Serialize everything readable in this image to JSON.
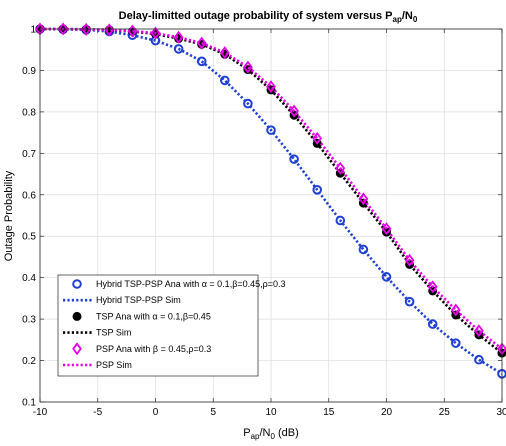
{
  "chart_data": {
    "type": "line",
    "title_main": "Delay-limitted outage probability of system versus P",
    "title_sub": "ap",
    "title_mid": "/N",
    "title_sub2": "0",
    "xlabel_main": "P",
    "xlabel_sub": "ap",
    "xlabel_mid": "/N",
    "xlabel_sub2": "0",
    "xlabel_unit": " (dB)",
    "ylabel": "Outage Probability",
    "xlim": [
      -10,
      30
    ],
    "ylim": [
      0.1,
      1.0
    ],
    "xticks": [
      -10,
      -5,
      0,
      5,
      10,
      15,
      20,
      25,
      30
    ],
    "xtick_labels": [
      "-10",
      "-5",
      "0",
      "5",
      "10",
      "15",
      "20",
      "25",
      "30"
    ],
    "yticks": [
      0.1,
      0.2,
      0.3,
      0.4,
      0.5,
      0.6,
      0.7,
      0.8,
      0.9,
      1.0
    ],
    "ytick_labels": [
      "0.1",
      "0.2",
      "0.3",
      "0.4",
      "0.5",
      "0.6",
      "0.7",
      "0.8",
      "0.9",
      "1"
    ],
    "grid": true,
    "legend_placement": "lower-left",
    "x": [
      -10,
      -8,
      -6,
      -4,
      -2,
      0,
      2,
      4,
      6,
      8,
      10,
      12,
      14,
      16,
      18,
      20,
      22,
      24,
      26,
      28,
      30
    ],
    "series": [
      {
        "name": "Hybrid TSP-PSP Ana with α = 0.1,β=0.45,ρ=0.3",
        "style": "marker",
        "marker": "circle-open",
        "color": "#1f3fd6",
        "values": [
          1.0,
          0.999,
          0.998,
          0.994,
          0.985,
          0.972,
          0.952,
          0.922,
          0.876,
          0.82,
          0.756,
          0.686,
          0.612,
          0.538,
          0.468,
          0.402,
          0.342,
          0.288,
          0.242,
          0.202,
          0.168
        ]
      },
      {
        "name": "Hybrid TSP-PSP Sim",
        "style": "dotted",
        "color": "#1f3fd6",
        "values": [
          1.0,
          0.999,
          0.998,
          0.994,
          0.985,
          0.972,
          0.952,
          0.922,
          0.876,
          0.82,
          0.756,
          0.686,
          0.612,
          0.538,
          0.468,
          0.402,
          0.342,
          0.288,
          0.242,
          0.202,
          0.168
        ]
      },
      {
        "name": "TSP Ana with α = 0.1,β=0.45",
        "style": "marker",
        "marker": "circle-filled",
        "color": "#000000",
        "values": [
          1.0,
          1.0,
          0.999,
          0.998,
          0.994,
          0.988,
          0.977,
          0.963,
          0.939,
          0.902,
          0.853,
          0.792,
          0.724,
          0.652,
          0.58,
          0.51,
          0.432,
          0.368,
          0.31,
          0.262,
          0.218
        ]
      },
      {
        "name": "TSP Sim",
        "style": "dotted",
        "color": "#000000",
        "values": [
          1.0,
          1.0,
          0.999,
          0.998,
          0.994,
          0.988,
          0.977,
          0.963,
          0.939,
          0.902,
          0.853,
          0.792,
          0.724,
          0.652,
          0.58,
          0.51,
          0.432,
          0.368,
          0.31,
          0.262,
          0.218
        ]
      },
      {
        "name": "PSP Ana with β = 0.45,ρ=0.3",
        "style": "marker",
        "marker": "diamond-open",
        "color": "#e600e6",
        "values": [
          1.0,
          1.0,
          0.999,
          0.998,
          0.995,
          0.99,
          0.98,
          0.966,
          0.943,
          0.908,
          0.861,
          0.802,
          0.736,
          0.664,
          0.59,
          0.518,
          0.442,
          0.378,
          0.322,
          0.272,
          0.228
        ]
      },
      {
        "name": "PSP Sim",
        "style": "dotted",
        "color": "#e600e6",
        "values": [
          1.0,
          1.0,
          0.999,
          0.998,
          0.995,
          0.99,
          0.98,
          0.966,
          0.943,
          0.908,
          0.861,
          0.802,
          0.736,
          0.664,
          0.59,
          0.518,
          0.442,
          0.378,
          0.322,
          0.272,
          0.228
        ]
      }
    ],
    "legend": [
      {
        "pre": "Hybrid TSP-PSP Ana with ",
        "g1": "α",
        "m1": " = 0.1,",
        "g2": "β",
        "m2": "=0.45,",
        "g3": "ρ",
        "post": "=0.3"
      },
      {
        "pre": "Hybrid TSP-PSP Sim",
        "g1": "",
        "m1": "",
        "g2": "",
        "m2": "",
        "g3": "",
        "post": ""
      },
      {
        "pre": "TSP Ana with ",
        "g1": "α",
        "m1": " = 0.1,",
        "g2": "β",
        "m2": "=0.45",
        "g3": "",
        "post": ""
      },
      {
        "pre": "TSP Sim",
        "g1": "",
        "m1": "",
        "g2": "",
        "m2": "",
        "g3": "",
        "post": ""
      },
      {
        "pre": "PSP Ana with ",
        "g1": "β",
        "m1": " = 0.45,",
        "g2": "ρ",
        "m2": "=0.3",
        "g3": "",
        "post": ""
      },
      {
        "pre": "PSP Sim",
        "g1": "",
        "m1": "",
        "g2": "",
        "m2": "",
        "g3": "",
        "post": ""
      }
    ]
  }
}
